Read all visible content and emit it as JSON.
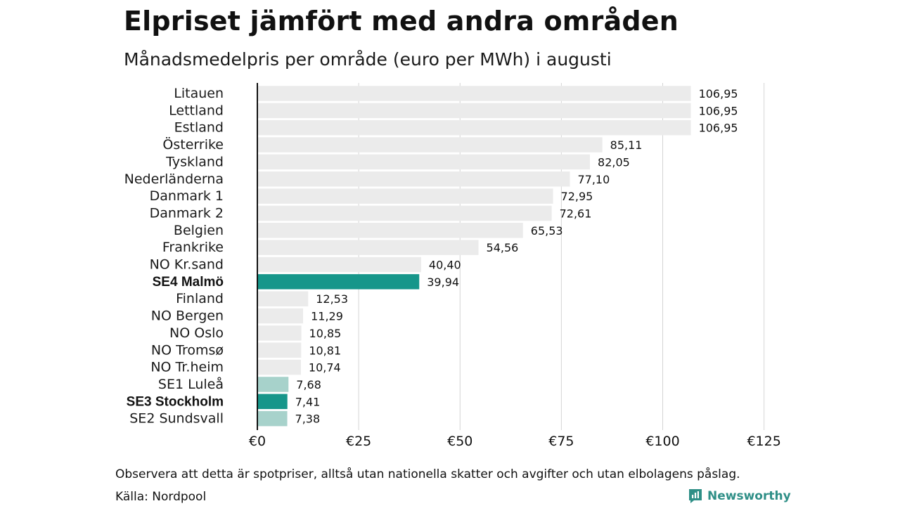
{
  "title": "Elpriset jämfört med andra områden",
  "subtitle": "Månadsmedelpris per område (euro per MWh) i augusti",
  "note": "Observera att detta är spotpriser, alltså utan nationella skatter och avgifter och utan elbolagens påslag.",
  "source": "Källa: Nordpool",
  "brand": "Newsworthy",
  "colors": {
    "default_bar": "#ebebeb",
    "highlight_bar": "#16968a",
    "highlight_light_bar": "#a7d2cb",
    "gridline": "#d4d4d4",
    "baseline": "#111111",
    "brand": "#2f8f87"
  },
  "chart_data": {
    "type": "bar",
    "orientation": "horizontal",
    "categories": [
      "Litauen",
      "Lettland",
      "Estland",
      "Österrike",
      "Tyskland",
      "Nederländerna",
      "Danmark  1",
      "Danmark  2",
      "Belgien",
      "Frankrike",
      "NO Kr.sand",
      "SE4 Malmö",
      "Finland",
      "NO Bergen",
      "NO Oslo",
      "NO Tromsø",
      "NO Tr.heim",
      "SE1   Luleå",
      "SE3 Stockholm",
      "SE2  Sundsvall"
    ],
    "values": [
      106.95,
      106.95,
      106.95,
      85.11,
      82.05,
      77.1,
      72.95,
      72.61,
      65.53,
      54.56,
      40.4,
      39.94,
      12.53,
      11.29,
      10.85,
      10.81,
      10.74,
      7.68,
      7.41,
      7.38
    ],
    "value_labels": [
      "106,95",
      "106,95",
      "106,95",
      "85,11",
      "82,05",
      "77,10",
      "72,95",
      "72,61",
      "65,53",
      "54,56",
      "40,40",
      "39,94",
      "12,53",
      "11,29",
      "10,85",
      "10,81",
      "10,74",
      "7,68",
      "7,41",
      "7,38"
    ],
    "bar_style": [
      "default",
      "default",
      "default",
      "default",
      "default",
      "default",
      "default",
      "default",
      "default",
      "default",
      "default",
      "highlight",
      "default",
      "default",
      "default",
      "default",
      "default",
      "highlight_light",
      "highlight",
      "highlight_light"
    ],
    "bold_labels": [
      "SE4 Malmö",
      "SE3 Stockholm"
    ],
    "xlim": [
      0,
      125
    ],
    "x_ticks": [
      0,
      25,
      50,
      75,
      100,
      125
    ],
    "x_tick_labels": [
      "€0",
      "€25",
      "€50",
      "€75",
      "€100",
      "€125"
    ],
    "grid": "vertical",
    "legend": "none"
  }
}
